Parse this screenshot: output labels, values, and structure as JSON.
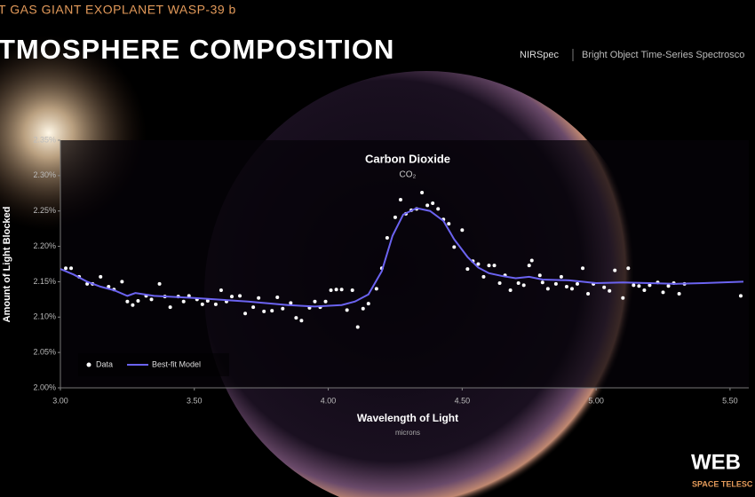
{
  "header": {
    "kicker": "T GAS GIANT EXOPLANET WASP-39 b",
    "title": "TMOSPHERE COMPOSITION",
    "instrument": "NIRSpec",
    "mode": "Bright Object Time-Series Spectrosco"
  },
  "logo": {
    "name": "WEB",
    "subtitle": "SPACE TELESC"
  },
  "chart_data": {
    "type": "scatter",
    "annotation": {
      "text": "Carbon Dioxide",
      "formula": "CO₂"
    },
    "x_label": "Wavelength of Light",
    "x_unit": "microns",
    "y_label": "Amount of Light Blocked",
    "xlim": [
      3.0,
      5.57
    ],
    "ylim": [
      2.0,
      2.35
    ],
    "xticks": [
      {
        "value": 3,
        "label": "3.00"
      },
      {
        "value": 3.5,
        "label": "3.50"
      },
      {
        "value": 4,
        "label": "4.00"
      },
      {
        "value": 4.5,
        "label": "4.50"
      },
      {
        "value": 5,
        "label": "5.00"
      },
      {
        "value": 5.5,
        "label": "5.50"
      }
    ],
    "yticks": [
      {
        "value": 2.0,
        "label": "2.00%"
      },
      {
        "value": 2.05,
        "label": "2.05%"
      },
      {
        "value": 2.1,
        "label": "2.10%"
      },
      {
        "value": 2.15,
        "label": "2.15%"
      },
      {
        "value": 2.2,
        "label": "2.20%"
      },
      {
        "value": 2.25,
        "label": "2.25%"
      },
      {
        "value": 2.3,
        "label": "2.30%"
      },
      {
        "value": 2.35,
        "label": "2.35%"
      }
    ],
    "legend": "lower left",
    "series": [
      {
        "name": "Data",
        "type": "scatter",
        "color": "#ffffff",
        "x": [
          3.02,
          3.04,
          3.07,
          3.1,
          3.12,
          3.15,
          3.18,
          3.2,
          3.23,
          3.25,
          3.27,
          3.29,
          3.32,
          3.34,
          3.37,
          3.39,
          3.41,
          3.44,
          3.46,
          3.48,
          3.51,
          3.53,
          3.55,
          3.58,
          3.6,
          3.62,
          3.64,
          3.67,
          3.69,
          3.72,
          3.74,
          3.76,
          3.79,
          3.81,
          3.83,
          3.86,
          3.88,
          3.9,
          3.93,
          3.95,
          3.97,
          3.99,
          4.01,
          4.03,
          4.05,
          4.07,
          4.09,
          4.11,
          4.13,
          4.15,
          4.18,
          4.2,
          4.22,
          4.25,
          4.27,
          4.29,
          4.31,
          4.33,
          4.35,
          4.37,
          4.39,
          4.41,
          4.43,
          4.45,
          4.47,
          4.5,
          4.52,
          4.54,
          4.56,
          4.58,
          4.6,
          4.62,
          4.64,
          4.66,
          4.68,
          4.71,
          4.73,
          4.75,
          4.76,
          4.79,
          4.8,
          4.82,
          4.85,
          4.87,
          4.89,
          4.91,
          4.93,
          4.95,
          4.97,
          4.99,
          5.03,
          5.05,
          5.07,
          5.1,
          5.12,
          5.14,
          5.16,
          5.18,
          5.2,
          5.23,
          5.25,
          5.27,
          5.29,
          5.31,
          5.33,
          5.54
        ],
        "values": [
          2.169,
          2.169,
          2.157,
          2.147,
          2.147,
          2.157,
          2.143,
          2.139,
          2.15,
          2.122,
          2.117,
          2.123,
          2.13,
          2.125,
          2.147,
          2.129,
          2.114,
          2.129,
          2.122,
          2.13,
          2.125,
          2.118,
          2.123,
          2.118,
          2.138,
          2.122,
          2.129,
          2.13,
          2.105,
          2.114,
          2.127,
          2.108,
          2.109,
          2.128,
          2.112,
          2.12,
          2.099,
          2.095,
          2.113,
          2.122,
          2.114,
          2.122,
          2.138,
          2.139,
          2.139,
          2.11,
          2.138,
          2.086,
          2.112,
          2.119,
          2.14,
          2.169,
          2.212,
          2.241,
          2.266,
          2.246,
          2.251,
          2.253,
          2.276,
          2.258,
          2.261,
          2.253,
          2.238,
          2.232,
          2.199,
          2.223,
          2.168,
          2.179,
          2.175,
          2.157,
          2.173,
          2.173,
          2.148,
          2.159,
          2.138,
          2.148,
          2.145,
          2.173,
          2.18,
          2.159,
          2.149,
          2.14,
          2.147,
          2.157,
          2.143,
          2.14,
          2.147,
          2.169,
          2.133,
          2.147,
          2.142,
          2.137,
          2.166,
          2.127,
          2.169,
          2.145,
          2.144,
          2.138,
          2.145,
          2.149,
          2.135,
          2.144,
          2.148,
          2.133,
          2.147,
          2.13
        ]
      },
      {
        "name": "Best-fit Model",
        "type": "line",
        "color": "#6b63f0",
        "x": [
          3.0,
          3.05,
          3.1,
          3.15,
          3.2,
          3.25,
          3.28,
          3.35,
          3.5,
          3.7,
          3.85,
          3.95,
          4.05,
          4.1,
          4.15,
          4.2,
          4.24,
          4.28,
          4.33,
          4.38,
          4.43,
          4.47,
          4.52,
          4.56,
          4.6,
          4.65,
          4.7,
          4.75,
          4.8,
          4.9,
          5.0,
          5.1,
          5.2,
          5.3,
          5.4,
          5.55
        ],
        "values": [
          2.168,
          2.16,
          2.15,
          2.143,
          2.138,
          2.13,
          2.134,
          2.13,
          2.127,
          2.122,
          2.117,
          2.115,
          2.117,
          2.122,
          2.132,
          2.165,
          2.215,
          2.245,
          2.254,
          2.25,
          2.236,
          2.21,
          2.185,
          2.17,
          2.162,
          2.158,
          2.155,
          2.157,
          2.153,
          2.152,
          2.148,
          2.149,
          2.148,
          2.147,
          2.148,
          2.15
        ]
      }
    ]
  }
}
